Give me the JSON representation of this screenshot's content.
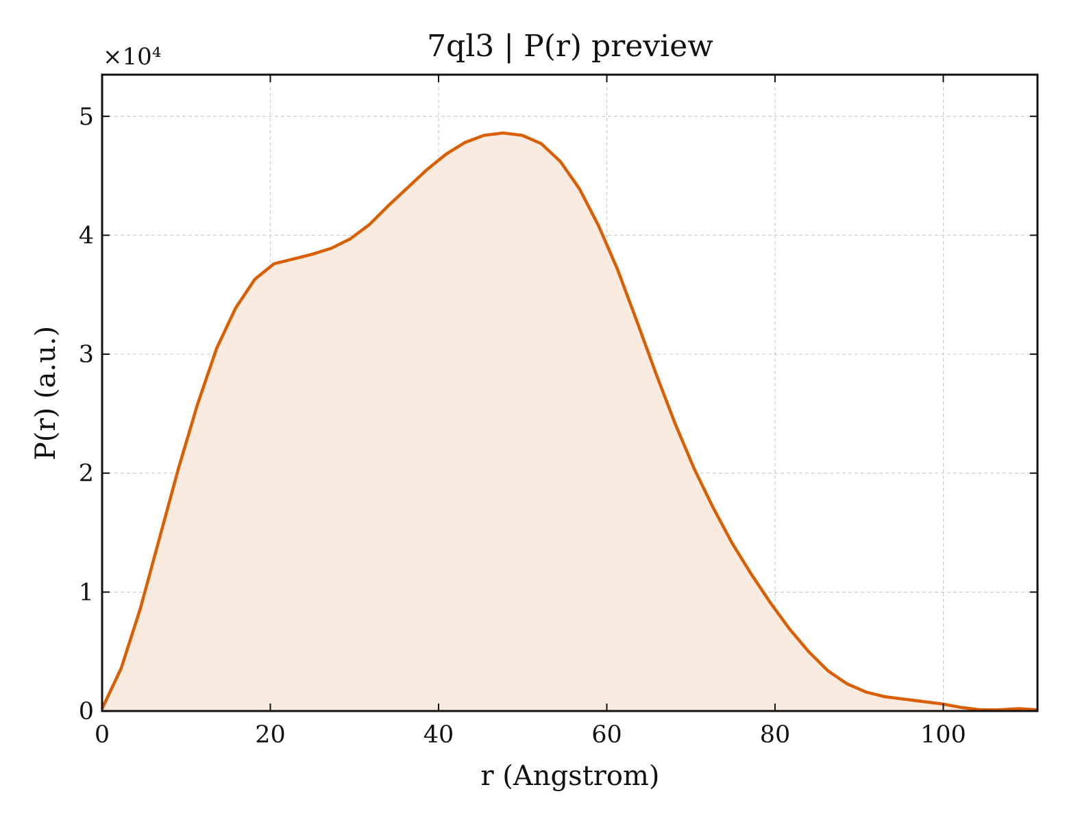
{
  "chart_data": {
    "type": "area",
    "title": "7ql3 | P(r) preview",
    "xlabel": "r (Angstrom)",
    "ylabel": "P(r) (a.u.)",
    "y_multiplier_label": "×10⁴",
    "xlim": [
      0,
      111.2
    ],
    "ylim": [
      0,
      5.35
    ],
    "y_scale_factor": 10000,
    "xticks": [
      0,
      20,
      40,
      60,
      80,
      100
    ],
    "yticks": [
      0,
      1,
      2,
      3,
      4,
      5
    ],
    "grid": true,
    "line_color": "#d95f02",
    "fill_color": "#f9ebe0",
    "series": [
      {
        "x": [
          0,
          2.27,
          4.54,
          6.81,
          9.08,
          11.35,
          13.62,
          15.89,
          18.16,
          20.43,
          22.7,
          24.97,
          27.24,
          29.51,
          31.78,
          34.05,
          36.32,
          38.59,
          40.86,
          43.13,
          45.4,
          47.67,
          49.94,
          52.21,
          54.48,
          56.75,
          59.02,
          61.29,
          63.56,
          65.83,
          68.1,
          70.37,
          72.64,
          74.91,
          77.18,
          79.45,
          81.72,
          83.99,
          86.26,
          88.53,
          90.8,
          93.07,
          95.34,
          97.61,
          99.88,
          102.15,
          104.42,
          106.69,
          108.96,
          111.2
        ],
        "y": [
          0.02,
          0.36,
          0.86,
          1.45,
          2.04,
          2.58,
          3.05,
          3.39,
          3.63,
          3.76,
          3.8,
          3.84,
          3.89,
          3.97,
          4.09,
          4.25,
          4.4,
          4.55,
          4.68,
          4.78,
          4.84,
          4.86,
          4.84,
          4.77,
          4.62,
          4.39,
          4.08,
          3.71,
          3.28,
          2.84,
          2.42,
          2.04,
          1.71,
          1.41,
          1.15,
          0.91,
          0.69,
          0.5,
          0.34,
          0.23,
          0.16,
          0.12,
          0.1,
          0.08,
          0.06,
          0.03,
          0.01,
          0.01,
          0.02,
          0.01
        ]
      }
    ]
  }
}
